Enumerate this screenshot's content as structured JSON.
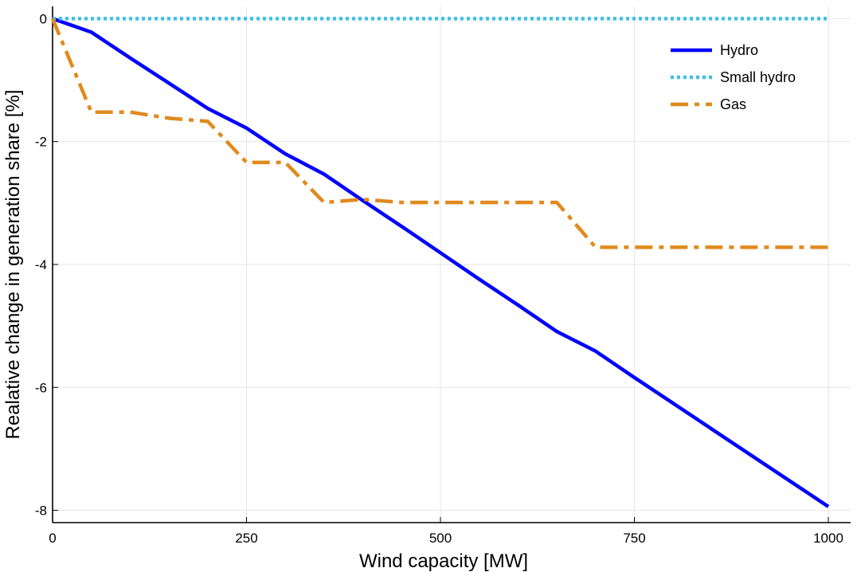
{
  "chart_data": {
    "type": "line",
    "xlabel": "Wind capacity [MW]",
    "ylabel": "Realative change in generation share [%]",
    "xlim": [
      0,
      1000
    ],
    "ylim": [
      -8.2,
      0.2
    ],
    "xticks": [
      0,
      250,
      500,
      750,
      1000
    ],
    "xtick_labels": [
      "0",
      "250",
      "500",
      "750",
      "1000"
    ],
    "yticks": [
      0,
      -2,
      -4,
      -6,
      -8
    ],
    "ytick_labels": [
      "0",
      "-2",
      "-4",
      "-6",
      "-8"
    ],
    "grid": true,
    "legend_position": "top-right",
    "series": [
      {
        "name": "Hydro",
        "color": "#0000ff",
        "style": "solid",
        "x": [
          0,
          50,
          100,
          150,
          200,
          250,
          300,
          350,
          400,
          450,
          500,
          550,
          600,
          650,
          700,
          750,
          800,
          850,
          900,
          950,
          1000
        ],
        "y": [
          0,
          -0.22,
          -0.64,
          -1.05,
          -1.46,
          -1.78,
          -2.2,
          -2.53,
          -2.96,
          -3.38,
          -3.81,
          -4.24,
          -4.66,
          -5.09,
          -5.41,
          -5.84,
          -6.26,
          -6.68,
          -7.1,
          -7.52,
          -7.94
        ]
      },
      {
        "name": "Small hydro",
        "color": "#3ec1e6",
        "style": "dotted",
        "x": [
          0,
          1000
        ],
        "y": [
          0,
          0
        ]
      },
      {
        "name": "Gas",
        "color": "#e08a1e",
        "style": "dashdot",
        "x": [
          0,
          50,
          100,
          150,
          200,
          250,
          300,
          350,
          400,
          450,
          500,
          550,
          600,
          650,
          700,
          750,
          800,
          850,
          900,
          950,
          1000
        ],
        "y": [
          0,
          -1.52,
          -1.52,
          -1.62,
          -1.67,
          -2.34,
          -2.34,
          -2.99,
          -2.94,
          -2.99,
          -2.99,
          -2.99,
          -2.99,
          -2.99,
          -3.72,
          -3.72,
          -3.72,
          -3.72,
          -3.72,
          -3.72,
          -3.72
        ]
      }
    ]
  }
}
